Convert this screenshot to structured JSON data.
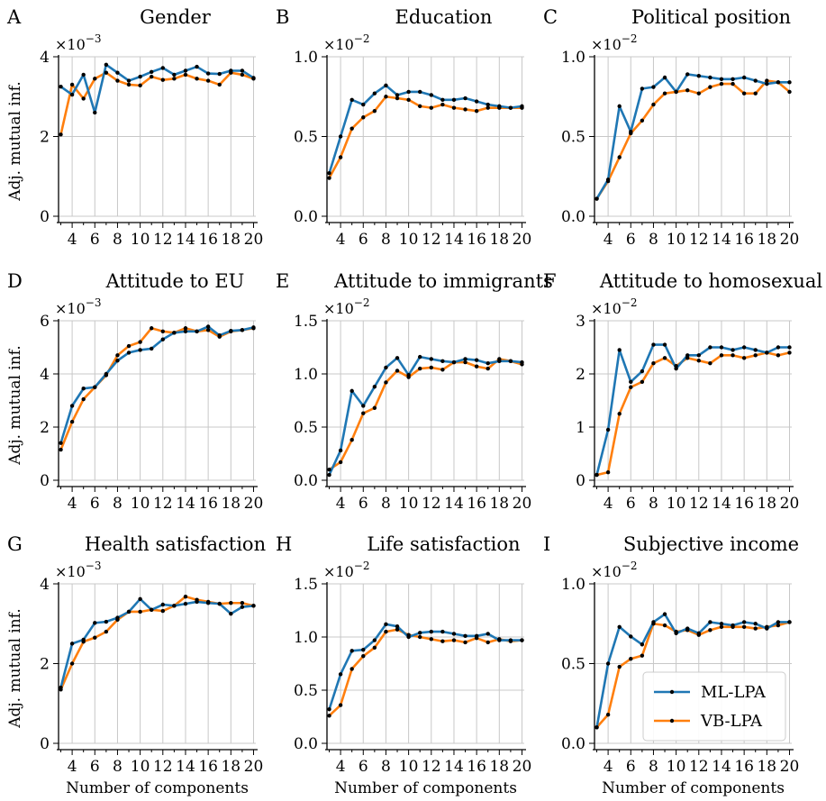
{
  "colors": {
    "ml": "#1f77b4",
    "vb": "#ff7f0e",
    "grid": "#c8c8c8",
    "marker": "#000000"
  },
  "legend": {
    "placement": "lower-right of panel I",
    "items": [
      {
        "label": "ML-LPA",
        "color": "#1f77b4"
      },
      {
        "label": "VB-LPA",
        "color": "#ff7f0e"
      }
    ]
  },
  "chart_data": [
    {
      "type": "line",
      "letter": "A",
      "title": "Gender",
      "xlabel": "",
      "ylabel": "Adj. mutual inf.",
      "scale_label": "×10",
      "scale_exp": "−3",
      "x": [
        3,
        4,
        5,
        6,
        7,
        8,
        9,
        10,
        11,
        12,
        13,
        14,
        15,
        16,
        17,
        18,
        19,
        20
      ],
      "xticks": [
        4,
        6,
        8,
        10,
        12,
        14,
        16,
        18,
        20
      ],
      "xlim": [
        2.8,
        20.2
      ],
      "ylim": [
        0,
        4
      ],
      "yticks": [
        0,
        2,
        4
      ],
      "ytick_labels": [
        "0",
        "2",
        "4"
      ],
      "grid": true,
      "series": [
        {
          "name": "ML-LPA",
          "values": [
            3.25,
            3.05,
            3.55,
            2.6,
            3.8,
            3.6,
            3.4,
            3.5,
            3.62,
            3.72,
            3.55,
            3.65,
            3.75,
            3.58,
            3.57,
            3.65,
            3.65,
            3.47
          ]
        },
        {
          "name": "VB-LPA",
          "values": [
            2.05,
            3.3,
            2.95,
            3.45,
            3.6,
            3.4,
            3.3,
            3.28,
            3.5,
            3.42,
            3.45,
            3.55,
            3.45,
            3.4,
            3.3,
            3.6,
            3.55,
            3.45
          ]
        }
      ]
    },
    {
      "type": "line",
      "letter": "B",
      "title": "Education",
      "xlabel": "",
      "ylabel": "",
      "scale_label": "×10",
      "scale_exp": "−2",
      "x": [
        3,
        4,
        5,
        6,
        7,
        8,
        9,
        10,
        11,
        12,
        13,
        14,
        15,
        16,
        17,
        18,
        19,
        20
      ],
      "xticks": [
        4,
        6,
        8,
        10,
        12,
        14,
        16,
        18,
        20
      ],
      "xlim": [
        2.8,
        20.2
      ],
      "ylim": [
        0,
        1.0
      ],
      "yticks": [
        0,
        0.5,
        1.0
      ],
      "ytick_labels": [
        "0.0",
        "0.5",
        "1.0"
      ],
      "grid": true,
      "series": [
        {
          "name": "ML-LPA",
          "values": [
            0.27,
            0.5,
            0.73,
            0.7,
            0.77,
            0.82,
            0.76,
            0.78,
            0.78,
            0.76,
            0.73,
            0.73,
            0.74,
            0.72,
            0.7,
            0.69,
            0.68,
            0.69
          ]
        },
        {
          "name": "VB-LPA",
          "values": [
            0.24,
            0.37,
            0.55,
            0.62,
            0.66,
            0.75,
            0.74,
            0.73,
            0.69,
            0.68,
            0.7,
            0.68,
            0.67,
            0.66,
            0.68,
            0.68,
            0.68,
            0.68
          ]
        }
      ]
    },
    {
      "type": "line",
      "letter": "C",
      "title": "Political position",
      "xlabel": "",
      "ylabel": "",
      "scale_label": "×10",
      "scale_exp": "−2",
      "x": [
        3,
        4,
        5,
        6,
        7,
        8,
        9,
        10,
        11,
        12,
        13,
        14,
        15,
        16,
        17,
        18,
        19,
        20
      ],
      "xticks": [
        4,
        6,
        8,
        10,
        12,
        14,
        16,
        18,
        20
      ],
      "xlim": [
        2.8,
        20.2
      ],
      "ylim": [
        0,
        1.0
      ],
      "yticks": [
        0,
        0.5,
        1.0
      ],
      "ytick_labels": [
        "0.0",
        "0.5",
        "1.0"
      ],
      "grid": true,
      "series": [
        {
          "name": "ML-LPA",
          "values": [
            0.11,
            0.23,
            0.69,
            0.53,
            0.8,
            0.81,
            0.87,
            0.78,
            0.89,
            0.88,
            0.87,
            0.86,
            0.86,
            0.87,
            0.85,
            0.83,
            0.84,
            0.84
          ]
        },
        {
          "name": "VB-LPA",
          "values": [
            0.11,
            0.22,
            0.37,
            0.52,
            0.6,
            0.7,
            0.77,
            0.78,
            0.79,
            0.77,
            0.81,
            0.83,
            0.83,
            0.77,
            0.77,
            0.85,
            0.84,
            0.78
          ]
        }
      ]
    },
    {
      "type": "line",
      "letter": "D",
      "title": "Attitude to EU",
      "xlabel": "",
      "ylabel": "Adj. mutual inf.",
      "scale_label": "×10",
      "scale_exp": "−3",
      "x": [
        3,
        4,
        5,
        6,
        7,
        8,
        9,
        10,
        11,
        12,
        13,
        14,
        15,
        16,
        17,
        18,
        19,
        20
      ],
      "xticks": [
        4,
        6,
        8,
        10,
        12,
        14,
        16,
        18,
        20
      ],
      "xlim": [
        2.8,
        20.2
      ],
      "ylim": [
        0,
        6
      ],
      "yticks": [
        0,
        2,
        4,
        6
      ],
      "ytick_labels": [
        "0",
        "2",
        "4",
        "6"
      ],
      "grid": true,
      "series": [
        {
          "name": "ML-LPA",
          "values": [
            1.4,
            2.8,
            3.45,
            3.5,
            4.0,
            4.5,
            4.8,
            4.9,
            4.95,
            5.3,
            5.55,
            5.6,
            5.6,
            5.78,
            5.45,
            5.62,
            5.65,
            5.75
          ]
        },
        {
          "name": "VB-LPA",
          "values": [
            1.15,
            2.2,
            3.05,
            3.5,
            3.95,
            4.7,
            5.05,
            5.2,
            5.72,
            5.6,
            5.55,
            5.72,
            5.6,
            5.65,
            5.4,
            5.6,
            5.65,
            5.72
          ]
        }
      ]
    },
    {
      "type": "line",
      "letter": "E",
      "title": "Attitude to immigrants",
      "xlabel": "",
      "ylabel": "",
      "scale_label": "×10",
      "scale_exp": "−2",
      "x": [
        3,
        4,
        5,
        6,
        7,
        8,
        9,
        10,
        11,
        12,
        13,
        14,
        15,
        16,
        17,
        18,
        19,
        20
      ],
      "xticks": [
        4,
        6,
        8,
        10,
        12,
        14,
        16,
        18,
        20
      ],
      "xlim": [
        2.8,
        20.2
      ],
      "ylim": [
        0,
        1.5
      ],
      "yticks": [
        0,
        0.5,
        1.0,
        1.5
      ],
      "ytick_labels": [
        "0.0",
        "0.5",
        "1.0",
        "1.5"
      ],
      "grid": true,
      "series": [
        {
          "name": "ML-LPA",
          "values": [
            0.05,
            0.28,
            0.84,
            0.7,
            0.88,
            1.06,
            1.15,
            0.99,
            1.16,
            1.14,
            1.12,
            1.11,
            1.14,
            1.13,
            1.1,
            1.12,
            1.12,
            1.11
          ]
        },
        {
          "name": "VB-LPA",
          "values": [
            0.1,
            0.17,
            0.38,
            0.63,
            0.68,
            0.92,
            1.03,
            0.97,
            1.05,
            1.06,
            1.04,
            1.11,
            1.11,
            1.07,
            1.05,
            1.14,
            1.12,
            1.09
          ]
        }
      ]
    },
    {
      "type": "line",
      "letter": "F",
      "title": "Attitude to homosexual",
      "xlabel": "",
      "ylabel": "",
      "scale_label": "×10",
      "scale_exp": "−2",
      "x": [
        3,
        4,
        5,
        6,
        7,
        8,
        9,
        10,
        11,
        12,
        13,
        14,
        15,
        16,
        17,
        18,
        19,
        20
      ],
      "xticks": [
        4,
        6,
        8,
        10,
        12,
        14,
        16,
        18,
        20
      ],
      "xlim": [
        2.8,
        20.2
      ],
      "ylim": [
        0,
        3
      ],
      "yticks": [
        0,
        1,
        2,
        3
      ],
      "ytick_labels": [
        "0",
        "1",
        "2",
        "3"
      ],
      "grid": true,
      "series": [
        {
          "name": "ML-LPA",
          "values": [
            0.1,
            0.95,
            2.45,
            1.85,
            2.05,
            2.55,
            2.55,
            2.1,
            2.35,
            2.35,
            2.5,
            2.5,
            2.45,
            2.5,
            2.45,
            2.4,
            2.5,
            2.5
          ]
        },
        {
          "name": "VB-LPA",
          "values": [
            0.1,
            0.15,
            1.25,
            1.75,
            1.85,
            2.2,
            2.3,
            2.15,
            2.3,
            2.25,
            2.2,
            2.35,
            2.35,
            2.3,
            2.35,
            2.4,
            2.35,
            2.4
          ]
        }
      ]
    },
    {
      "type": "line",
      "letter": "G",
      "title": "Health satisfaction",
      "xlabel": "Number of components",
      "ylabel": "Adj. mutual inf.",
      "scale_label": "×10",
      "scale_exp": "−3",
      "x": [
        3,
        4,
        5,
        6,
        7,
        8,
        9,
        10,
        11,
        12,
        13,
        14,
        15,
        16,
        17,
        18,
        19,
        20
      ],
      "xticks": [
        4,
        6,
        8,
        10,
        12,
        14,
        16,
        18,
        20
      ],
      "xlim": [
        2.8,
        20.2
      ],
      "ylim": [
        0,
        4
      ],
      "yticks": [
        0,
        2,
        4
      ],
      "ytick_labels": [
        "0",
        "2",
        "4"
      ],
      "grid": true,
      "series": [
        {
          "name": "ML-LPA",
          "values": [
            1.4,
            2.5,
            2.6,
            3.02,
            3.05,
            3.15,
            3.3,
            3.62,
            3.35,
            3.48,
            3.45,
            3.5,
            3.55,
            3.52,
            3.5,
            3.25,
            3.42,
            3.45
          ]
        },
        {
          "name": "VB-LPA",
          "values": [
            1.35,
            2.0,
            2.55,
            2.65,
            2.8,
            3.1,
            3.3,
            3.3,
            3.35,
            3.32,
            3.45,
            3.68,
            3.6,
            3.55,
            3.5,
            3.52,
            3.52,
            3.45
          ]
        }
      ]
    },
    {
      "type": "line",
      "letter": "H",
      "title": "Life satisfaction",
      "xlabel": "Number of components",
      "ylabel": "",
      "scale_label": "×10",
      "scale_exp": "−2",
      "x": [
        3,
        4,
        5,
        6,
        7,
        8,
        9,
        10,
        11,
        12,
        13,
        14,
        15,
        16,
        17,
        18,
        19,
        20
      ],
      "xticks": [
        4,
        6,
        8,
        10,
        12,
        14,
        16,
        18,
        20
      ],
      "xlim": [
        2.8,
        20.2
      ],
      "ylim": [
        0,
        1.5
      ],
      "yticks": [
        0,
        0.5,
        1.0,
        1.5
      ],
      "ytick_labels": [
        "0.0",
        "0.5",
        "1.0",
        "1.5"
      ],
      "grid": true,
      "series": [
        {
          "name": "ML-LPA",
          "values": [
            0.32,
            0.65,
            0.87,
            0.88,
            0.97,
            1.12,
            1.1,
            1.0,
            1.04,
            1.05,
            1.05,
            1.03,
            1.01,
            1.01,
            1.03,
            0.97,
            0.97,
            0.97
          ]
        },
        {
          "name": "VB-LPA",
          "values": [
            0.26,
            0.36,
            0.7,
            0.82,
            0.9,
            1.05,
            1.07,
            1.02,
            1.0,
            0.98,
            0.96,
            0.97,
            0.95,
            0.99,
            0.95,
            0.98,
            0.96,
            0.97
          ]
        }
      ]
    },
    {
      "type": "line",
      "letter": "I",
      "title": "Subjective income",
      "xlabel": "Number of components",
      "ylabel": "",
      "scale_label": "×10",
      "scale_exp": "−2",
      "x": [
        3,
        4,
        5,
        6,
        7,
        8,
        9,
        10,
        11,
        12,
        13,
        14,
        15,
        16,
        17,
        18,
        19,
        20
      ],
      "xticks": [
        4,
        6,
        8,
        10,
        12,
        14,
        16,
        18,
        20
      ],
      "xlim": [
        2.8,
        20.2
      ],
      "ylim": [
        0,
        1.0
      ],
      "yticks": [
        0,
        0.5,
        1.0
      ],
      "ytick_labels": [
        "0.0",
        "0.5",
        "1.0"
      ],
      "grid": true,
      "series": [
        {
          "name": "ML-LPA",
          "values": [
            0.1,
            0.5,
            0.73,
            0.67,
            0.62,
            0.76,
            0.81,
            0.69,
            0.72,
            0.69,
            0.76,
            0.75,
            0.74,
            0.76,
            0.75,
            0.72,
            0.76,
            0.76
          ]
        },
        {
          "name": "VB-LPA",
          "values": [
            0.1,
            0.18,
            0.48,
            0.53,
            0.55,
            0.75,
            0.74,
            0.7,
            0.71,
            0.68,
            0.71,
            0.73,
            0.73,
            0.73,
            0.72,
            0.73,
            0.74,
            0.76
          ]
        }
      ]
    }
  ]
}
